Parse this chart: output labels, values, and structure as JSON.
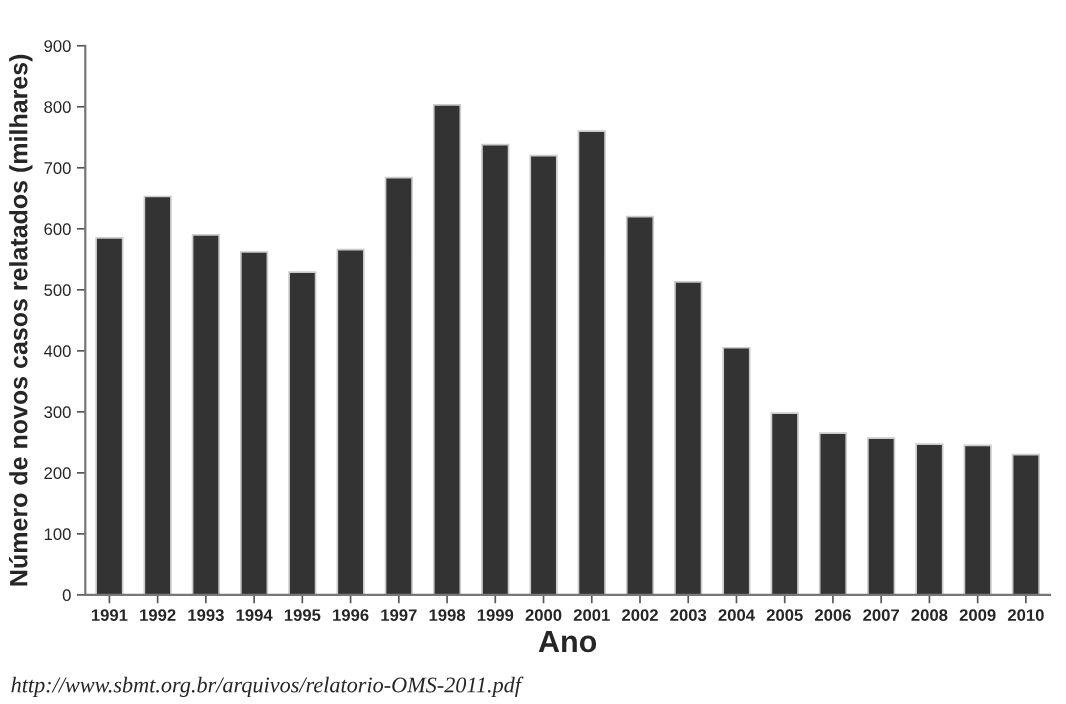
{
  "chart_data": {
    "type": "bar",
    "xlabel": "Ano",
    "ylabel": "Número de novos casos relatados (milhares)",
    "categories": [
      "1991",
      "1992",
      "1993",
      "1994",
      "1995",
      "1996",
      "1997",
      "1998",
      "1999",
      "2000",
      "2001",
      "2002",
      "2003",
      "2004",
      "2005",
      "2006",
      "2007",
      "2008",
      "2009",
      "2010"
    ],
    "values": [
      585,
      653,
      590,
      562,
      529,
      566,
      684,
      803,
      738,
      720,
      760,
      620,
      513,
      405,
      298,
      265,
      257,
      247,
      245,
      230
    ],
    "color": "#333333",
    "ylim": [
      0,
      900
    ],
    "yticks": [
      0,
      100,
      200,
      300,
      400,
      500,
      600,
      700,
      800,
      900
    ],
    "grid": false,
    "legend": false,
    "annotations": [
      "http://www.sbmt.org.br/arquivos/relatorio-OMS-2011.pdf"
    ]
  }
}
